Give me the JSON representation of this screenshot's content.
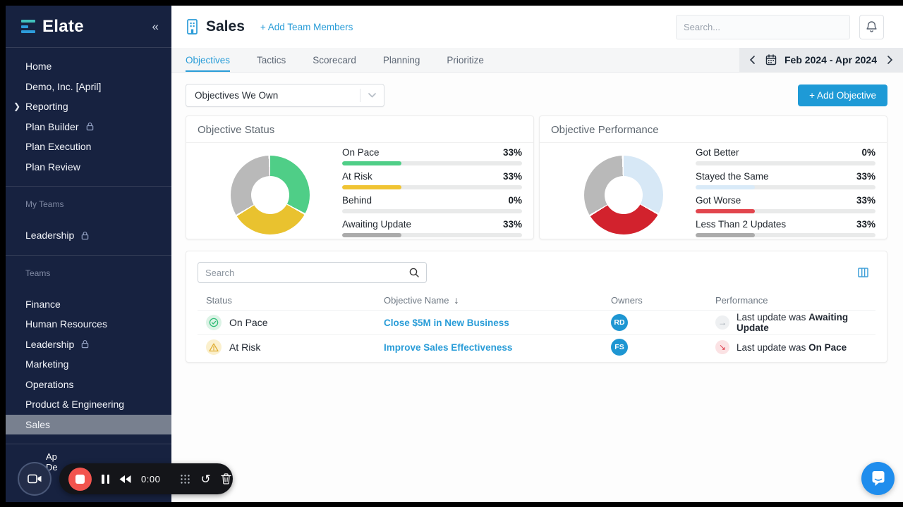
{
  "colors": {
    "sidebar_bg": "#172240",
    "accent_blue": "#2a9dd8",
    "button_blue": "#1e9ad6",
    "active_item_bg": "#78808f",
    "green": "#4fce87",
    "yellow": "#e9c22f",
    "red": "#d2222d",
    "gray": "#b9b9b9",
    "light_blue": "#d7e8f6",
    "record_red": "#f2544e",
    "intercom_blue": "#1f8ded"
  },
  "sidebar": {
    "logo_text": "Elate",
    "collapse_icon": "«",
    "nav": [
      {
        "label": "Home"
      },
      {
        "label": "Demo, Inc. [April]"
      },
      {
        "label": "Reporting",
        "expanded": true
      },
      {
        "label": "Plan Builder",
        "locked": true
      },
      {
        "label": "Plan Execution"
      },
      {
        "label": "Plan Review"
      }
    ],
    "sections": [
      {
        "title": "My Teams",
        "items": [
          {
            "label": "Leadership",
            "locked": true
          }
        ]
      },
      {
        "title": "Teams",
        "items": [
          {
            "label": "Finance"
          },
          {
            "label": "Human Resources"
          },
          {
            "label": "Leadership",
            "locked": true
          },
          {
            "label": "Marketing"
          },
          {
            "label": "Operations"
          },
          {
            "label": "Product & Engineering"
          },
          {
            "label": "Sales",
            "active": true
          }
        ]
      }
    ],
    "user_label_lines": [
      "Ap",
      "De"
    ]
  },
  "header": {
    "title": "Sales",
    "add_members_label": "+ Add Team Members",
    "search_placeholder": "Search..."
  },
  "tabbar": {
    "tabs": [
      {
        "label": "Objectives",
        "active": true
      },
      {
        "label": "Tactics"
      },
      {
        "label": "Scorecard"
      },
      {
        "label": "Planning"
      },
      {
        "label": "Prioritize"
      }
    ],
    "date_range": "Feb 2024 - Apr 2024"
  },
  "filter": {
    "dropdown_value": "Objectives We Own",
    "add_objective_label": "+ Add Objective"
  },
  "chart_data": [
    {
      "type": "pie",
      "title": "Objective Status",
      "value_suffix": "%",
      "slices": [
        {
          "label": "On Pace",
          "value": 33,
          "color": "#4fce87",
          "bar_color": "#4fce87"
        },
        {
          "label": "At Risk",
          "value": 33,
          "color": "#e9c22f",
          "bar_color": "#f0c433"
        },
        {
          "label": "Behind",
          "value": 0,
          "color": "#e0434b",
          "bar_color": "#e0434b"
        },
        {
          "label": "Awaiting Update",
          "value": 33,
          "color": "#b9b9b9",
          "bar_color": "#ababab"
        }
      ]
    },
    {
      "type": "pie",
      "title": "Objective Performance",
      "value_suffix": "%",
      "slices": [
        {
          "label": "Got Better",
          "value": 0,
          "color": "#4fce87",
          "bar_color": "#4fce87"
        },
        {
          "label": "Stayed the Same",
          "value": 33,
          "color": "#d7e8f6",
          "bar_color": "#d9eaf8"
        },
        {
          "label": "Got Worse",
          "value": 33,
          "color": "#d2222d",
          "bar_color": "#e2454d"
        },
        {
          "label": "Less Than 2 Updates",
          "value": 33,
          "color": "#b9b9b9",
          "bar_color": "#ababab"
        }
      ]
    }
  ],
  "table": {
    "search_placeholder": "Search",
    "headers": {
      "status": "Status",
      "objective": "Objective Name",
      "owners": "Owners",
      "performance": "Performance"
    },
    "rows": [
      {
        "status": "On Pace",
        "status_icon": "check",
        "objective": "Close $5M in New Business",
        "owner_initials": "RD",
        "perf_trend": "flat",
        "perf_prefix": "Last update was",
        "perf_status": "Awaiting Update"
      },
      {
        "status": "At Risk",
        "status_icon": "warning",
        "objective": "Improve Sales Effectiveness",
        "owner_initials": "FS",
        "perf_trend": "down",
        "perf_prefix": "Last update was",
        "perf_status": "On Pace"
      }
    ]
  },
  "recorder": {
    "time": "0:00"
  }
}
